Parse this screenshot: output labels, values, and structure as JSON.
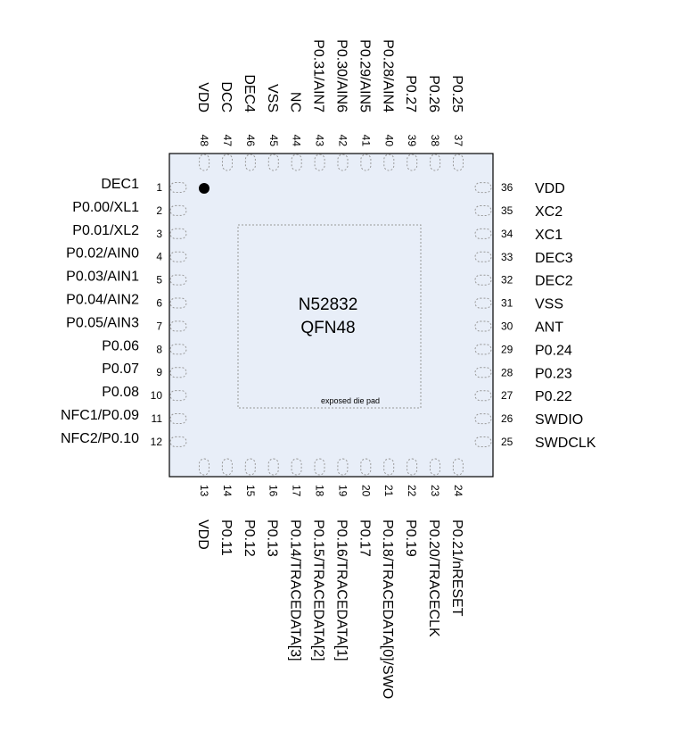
{
  "chip": {
    "part_number": "N52832",
    "package": "QFN48",
    "exposed_pad_label": "exposed die pad",
    "body_color": "#e8eef8",
    "outline_color": "#000000",
    "pad_outline_color": "#999999"
  },
  "pins": {
    "left": [
      {
        "num": "1",
        "name": "DEC1"
      },
      {
        "num": "2",
        "name": "P0.00/XL1"
      },
      {
        "num": "3",
        "name": "P0.01/XL2"
      },
      {
        "num": "4",
        "name": "P0.02/AIN0"
      },
      {
        "num": "5",
        "name": "P0.03/AIN1"
      },
      {
        "num": "6",
        "name": "P0.04/AIN2"
      },
      {
        "num": "7",
        "name": "P0.05/AIN3"
      },
      {
        "num": "8",
        "name": "P0.06"
      },
      {
        "num": "9",
        "name": "P0.07"
      },
      {
        "num": "10",
        "name": "P0.08"
      },
      {
        "num": "11",
        "name": "NFC1/P0.09"
      },
      {
        "num": "12",
        "name": "NFC2/P0.10"
      }
    ],
    "bottom": [
      {
        "num": "13",
        "name": "VDD"
      },
      {
        "num": "14",
        "name": "P0.11"
      },
      {
        "num": "15",
        "name": "P0.12"
      },
      {
        "num": "16",
        "name": "P0.13"
      },
      {
        "num": "17",
        "name": "P0.14/TRACEDATA[3]"
      },
      {
        "num": "18",
        "name": "P0.15/TRACEDATA[2]"
      },
      {
        "num": "19",
        "name": "P0.16/TRACEDATA[1]"
      },
      {
        "num": "20",
        "name": "P0.17"
      },
      {
        "num": "21",
        "name": "P0.18/TRACEDATA[0]/SWO"
      },
      {
        "num": "22",
        "name": "P0.19"
      },
      {
        "num": "23",
        "name": "P0.20/TRACECLK"
      },
      {
        "num": "24",
        "name": "P0.21/nRESET"
      }
    ],
    "right": [
      {
        "num": "25",
        "name": "SWDCLK"
      },
      {
        "num": "26",
        "name": "SWDIO"
      },
      {
        "num": "27",
        "name": "P0.22"
      },
      {
        "num": "28",
        "name": "P0.23"
      },
      {
        "num": "29",
        "name": "P0.24"
      },
      {
        "num": "30",
        "name": "ANT"
      },
      {
        "num": "31",
        "name": "VSS"
      },
      {
        "num": "32",
        "name": "DEC2"
      },
      {
        "num": "33",
        "name": "DEC3"
      },
      {
        "num": "34",
        "name": "XC1"
      },
      {
        "num": "35",
        "name": "XC2"
      },
      {
        "num": "36",
        "name": "VDD"
      }
    ],
    "top": [
      {
        "num": "37",
        "name": "P0.25"
      },
      {
        "num": "38",
        "name": "P0.26"
      },
      {
        "num": "39",
        "name": "P0.27"
      },
      {
        "num": "40",
        "name": "P0.28/AIN4"
      },
      {
        "num": "41",
        "name": "P0.29/AIN5"
      },
      {
        "num": "42",
        "name": "P0.30/AIN6"
      },
      {
        "num": "43",
        "name": "P0.31/AIN7"
      },
      {
        "num": "44",
        "name": "NC"
      },
      {
        "num": "45",
        "name": "VSS"
      },
      {
        "num": "46",
        "name": "DEC4"
      },
      {
        "num": "47",
        "name": "DCC"
      },
      {
        "num": "48",
        "name": "VDD"
      }
    ]
  }
}
